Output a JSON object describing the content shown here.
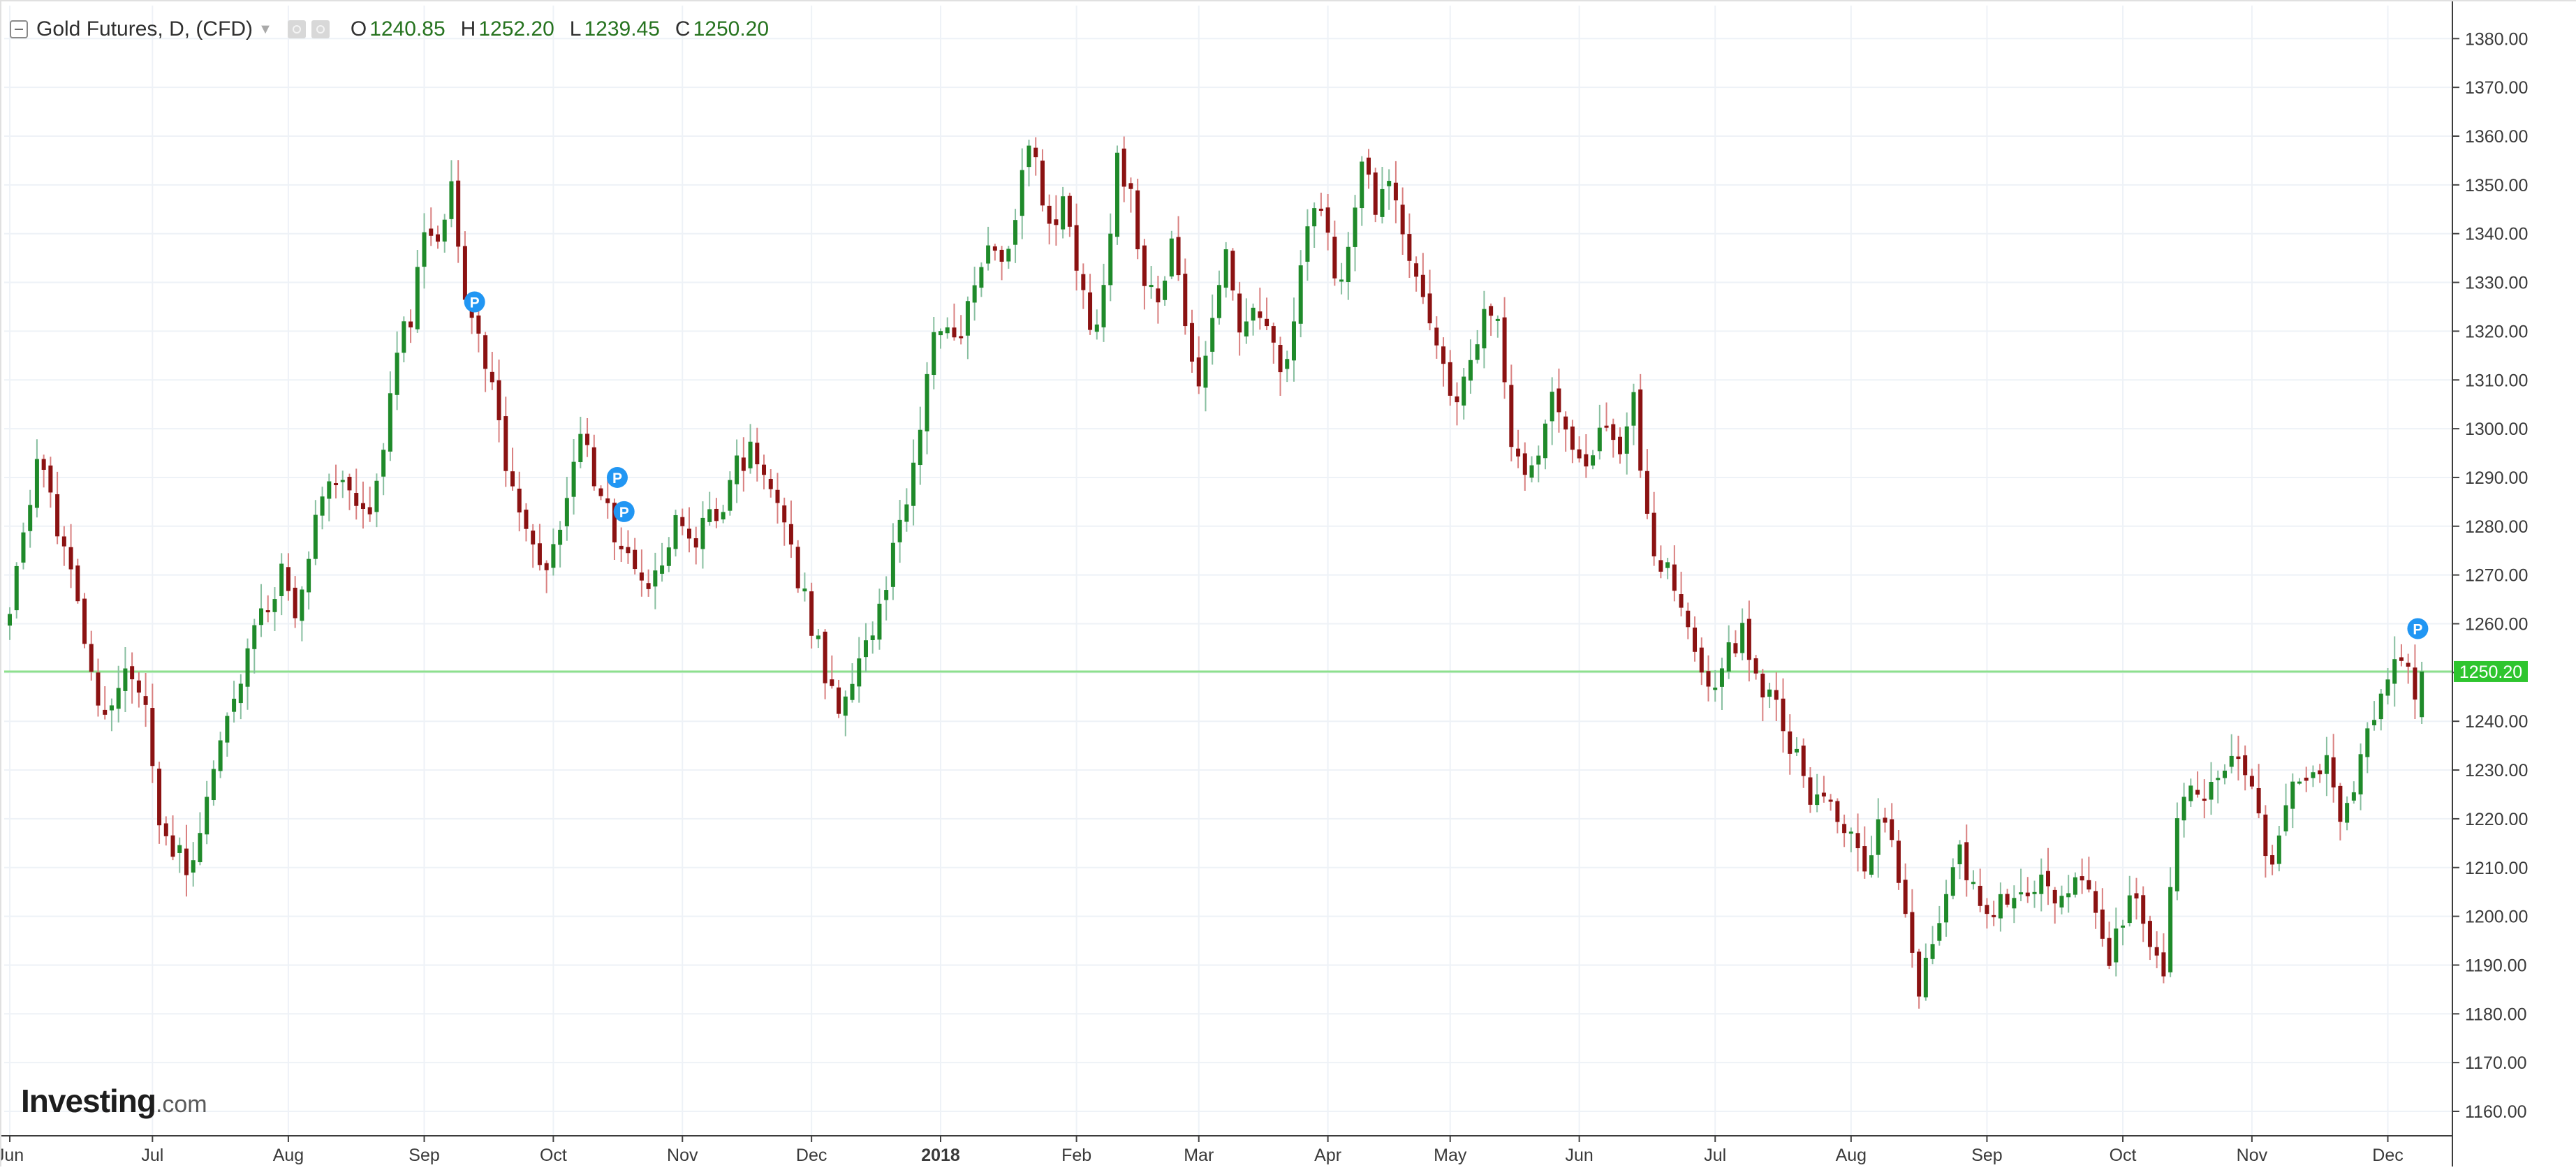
{
  "header": {
    "title": "Gold Futures, D, (CFD)",
    "ohlc": [
      {
        "key": "O",
        "value": "1240.85"
      },
      {
        "key": "H",
        "value": "1252.20"
      },
      {
        "key": "L",
        "value": "1239.45"
      },
      {
        "key": "C",
        "value": "1250.20"
      }
    ]
  },
  "branding": {
    "name": "Investing",
    "domain": ".com"
  },
  "colors": {
    "up": "#1f8a2a",
    "down": "#8b1212",
    "up_wick": "#88bfa0",
    "down_wick": "#d98080",
    "grid": "#eef2f7",
    "price_line": "#8ee08e",
    "price_tag": "#2ec52e",
    "marker": "#2196f3"
  },
  "chart_data": {
    "type": "candlestick",
    "ylim": [
      1155,
      1385
    ],
    "y_ticks": [
      "1160.00",
      "1170.00",
      "1180.00",
      "1190.00",
      "1200.00",
      "1210.00",
      "1220.00",
      "1230.00",
      "1240.00",
      "1250.00",
      "1260.00",
      "1270.00",
      "1280.00",
      "1290.00",
      "1300.00",
      "1310.00",
      "1320.00",
      "1330.00",
      "1340.00",
      "1350.00",
      "1360.00",
      "1370.00",
      "1380.00"
    ],
    "x_ticks": [
      {
        "label": "Jun",
        "index": 0
      },
      {
        "label": "Jul",
        "index": 21
      },
      {
        "label": "Aug",
        "index": 41
      },
      {
        "label": "Sep",
        "index": 61
      },
      {
        "label": "Oct",
        "index": 80
      },
      {
        "label": "Nov",
        "index": 99
      },
      {
        "label": "Dec",
        "index": 118
      },
      {
        "label": "2018",
        "index": 137,
        "bold": true
      },
      {
        "label": "Feb",
        "index": 157
      },
      {
        "label": "Mar",
        "index": 175
      },
      {
        "label": "Apr",
        "index": 194
      },
      {
        "label": "May",
        "index": 212
      },
      {
        "label": "Jun",
        "index": 231
      },
      {
        "label": "Jul",
        "index": 251
      },
      {
        "label": "Aug",
        "index": 271
      },
      {
        "label": "Sep",
        "index": 291
      },
      {
        "label": "Oct",
        "index": 311
      },
      {
        "label": "Nov",
        "index": 330
      },
      {
        "label": "Dec",
        "index": 350
      }
    ],
    "last_price": 1250.2,
    "last_price_label": "1250.20",
    "markers": [
      {
        "label": "P",
        "index": 68,
        "price": 1326
      },
      {
        "label": "P",
        "index": 89,
        "price": 1290
      },
      {
        "label": "P",
        "index": 90,
        "price": 1283
      },
      {
        "label": "P",
        "index": 354,
        "price": 1259
      }
    ],
    "anchors": [
      [
        0,
        1262
      ],
      [
        4,
        1294
      ],
      [
        8,
        1275
      ],
      [
        12,
        1250
      ],
      [
        14,
        1241
      ],
      [
        17,
        1250
      ],
      [
        20,
        1245
      ],
      [
        22,
        1218
      ],
      [
        25,
        1212
      ],
      [
        27,
        1210
      ],
      [
        29,
        1225
      ],
      [
        31,
        1238
      ],
      [
        34,
        1250
      ],
      [
        37,
        1262
      ],
      [
        40,
        1270
      ],
      [
        42,
        1260
      ],
      [
        45,
        1280
      ],
      [
        48,
        1291
      ],
      [
        51,
        1284
      ],
      [
        53,
        1282
      ],
      [
        55,
        1294
      ],
      [
        57,
        1318
      ],
      [
        59,
        1322
      ],
      [
        61,
        1340
      ],
      [
        63,
        1336
      ],
      [
        65,
        1350
      ],
      [
        67,
        1325
      ],
      [
        69,
        1322
      ],
      [
        71,
        1308
      ],
      [
        73,
        1290
      ],
      [
        75,
        1285
      ],
      [
        77,
        1275
      ],
      [
        79,
        1272
      ],
      [
        81,
        1282
      ],
      [
        84,
        1300
      ],
      [
        86,
        1290
      ],
      [
        88,
        1282
      ],
      [
        90,
        1275
      ],
      [
        92,
        1270
      ],
      [
        94,
        1268
      ],
      [
        96,
        1270
      ],
      [
        98,
        1280
      ],
      [
        100,
        1275
      ],
      [
        102,
        1280
      ],
      [
        105,
        1285
      ],
      [
        107,
        1292
      ],
      [
        109,
        1295
      ],
      [
        111,
        1290
      ],
      [
        114,
        1280
      ],
      [
        116,
        1270
      ],
      [
        118,
        1260
      ],
      [
        120,
        1250
      ],
      [
        122,
        1240
      ],
      [
        124,
        1250
      ],
      [
        126,
        1258
      ],
      [
        128,
        1262
      ],
      [
        130,
        1275
      ],
      [
        132,
        1285
      ],
      [
        134,
        1300
      ],
      [
        136,
        1318
      ],
      [
        138,
        1322
      ],
      [
        140,
        1320
      ],
      [
        142,
        1330
      ],
      [
        144,
        1338
      ],
      [
        146,
        1333
      ],
      [
        148,
        1342
      ],
      [
        150,
        1360
      ],
      [
        151,
        1355
      ],
      [
        153,
        1340
      ],
      [
        155,
        1345
      ],
      [
        157,
        1335
      ],
      [
        159,
        1318
      ],
      [
        161,
        1330
      ],
      [
        163,
        1355
      ],
      [
        165,
        1348
      ],
      [
        167,
        1330
      ],
      [
        169,
        1325
      ],
      [
        171,
        1338
      ],
      [
        173,
        1320
      ],
      [
        175,
        1310
      ],
      [
        177,
        1325
      ],
      [
        179,
        1338
      ],
      [
        181,
        1322
      ],
      [
        183,
        1325
      ],
      [
        185,
        1320
      ],
      [
        187,
        1312
      ],
      [
        189,
        1322
      ],
      [
        191,
        1342
      ],
      [
        193,
        1345
      ],
      [
        195,
        1330
      ],
      [
        197,
        1335
      ],
      [
        199,
        1355
      ],
      [
        201,
        1345
      ],
      [
        203,
        1350
      ],
      [
        205,
        1340
      ],
      [
        207,
        1330
      ],
      [
        209,
        1320
      ],
      [
        211,
        1312
      ],
      [
        213,
        1305
      ],
      [
        215,
        1315
      ],
      [
        217,
        1322
      ],
      [
        219,
        1320
      ],
      [
        221,
        1295
      ],
      [
        223,
        1290
      ],
      [
        225,
        1295
      ],
      [
        227,
        1305
      ],
      [
        229,
        1298
      ],
      [
        231,
        1292
      ],
      [
        233,
        1297
      ],
      [
        235,
        1300
      ],
      [
        237,
        1295
      ],
      [
        239,
        1305
      ],
      [
        241,
        1280
      ],
      [
        243,
        1272
      ],
      [
        245,
        1268
      ],
      [
        247,
        1260
      ],
      [
        249,
        1250
      ],
      [
        251,
        1245
      ],
      [
        253,
        1255
      ],
      [
        255,
        1258
      ],
      [
        257,
        1250
      ],
      [
        259,
        1245
      ],
      [
        261,
        1240
      ],
      [
        263,
        1232
      ],
      [
        265,
        1225
      ],
      [
        267,
        1222
      ],
      [
        269,
        1220
      ],
      [
        271,
        1218
      ],
      [
        273,
        1210
      ],
      [
        275,
        1220
      ],
      [
        277,
        1215
      ],
      [
        279,
        1198
      ],
      [
        281,
        1185
      ],
      [
        283,
        1195
      ],
      [
        285,
        1205
      ],
      [
        287,
        1212
      ],
      [
        289,
        1208
      ],
      [
        291,
        1200
      ],
      [
        293,
        1205
      ],
      [
        295,
        1205
      ],
      [
        297,
        1205
      ],
      [
        299,
        1210
      ],
      [
        301,
        1205
      ],
      [
        303,
        1203
      ],
      [
        305,
        1208
      ],
      [
        307,
        1200
      ],
      [
        309,
        1190
      ],
      [
        311,
        1200
      ],
      [
        313,
        1205
      ],
      [
        315,
        1195
      ],
      [
        317,
        1190
      ],
      [
        319,
        1222
      ],
      [
        321,
        1228
      ],
      [
        323,
        1225
      ],
      [
        325,
        1230
      ],
      [
        327,
        1233
      ],
      [
        329,
        1228
      ],
      [
        331,
        1220
      ],
      [
        333,
        1210
      ],
      [
        335,
        1222
      ],
      [
        337,
        1230
      ],
      [
        339,
        1228
      ],
      [
        341,
        1232
      ],
      [
        343,
        1220
      ],
      [
        345,
        1228
      ],
      [
        347,
        1240
      ],
      [
        349,
        1246
      ],
      [
        351,
        1250
      ],
      [
        353,
        1250
      ],
      [
        354,
        1246
      ],
      [
        355,
        1250
      ]
    ]
  }
}
